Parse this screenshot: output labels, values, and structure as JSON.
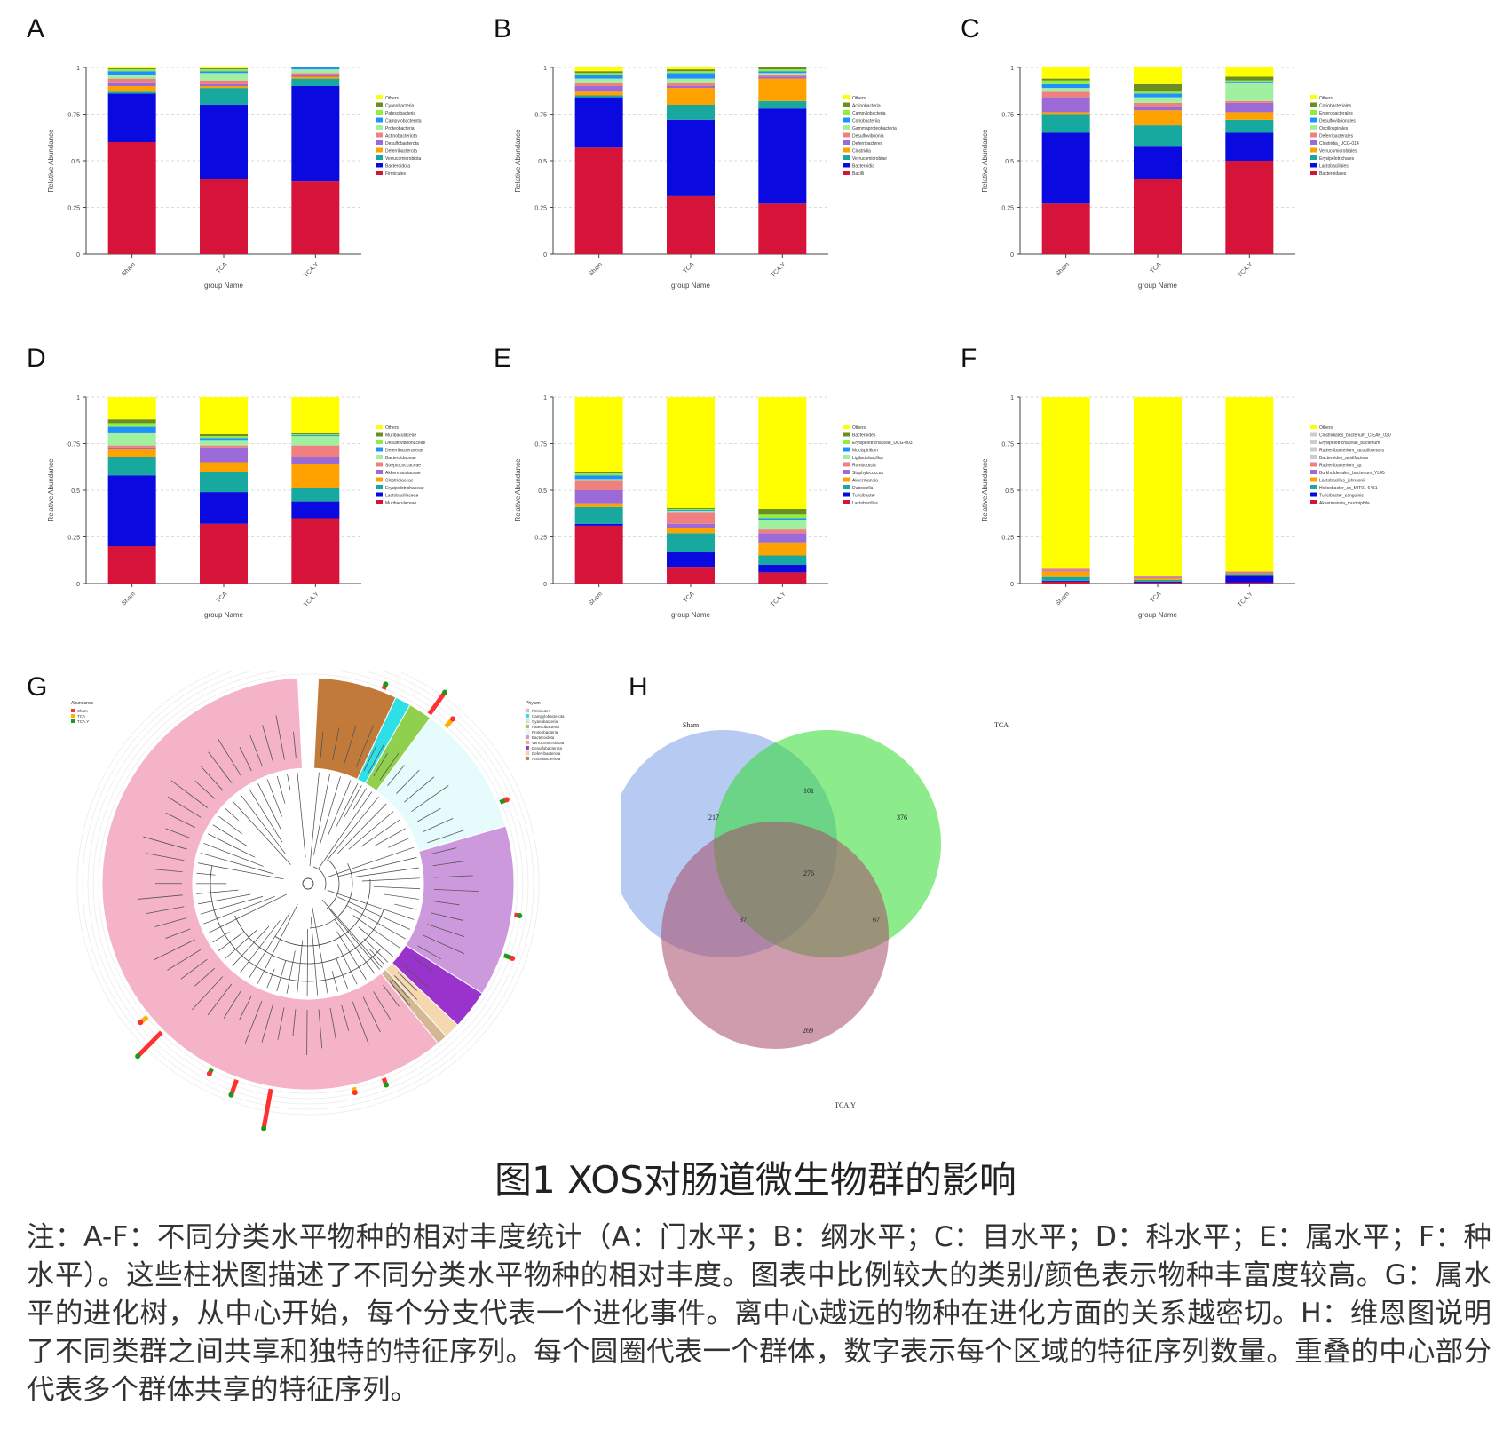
{
  "figure_title": "图1 XOS对肠道微生物群的影响",
  "note_text": "注：A-F：不同分类水平物种的相对丰度统计（A：门水平；B：纲水平；C：目水平；D：科水平；E：属水平；F：种水平）。这些柱状图描述了不同分类水平物种的相对丰度。图表中比例较大的类别/颜色表示物种丰富度较高。G：属水平的进化树，从中心开始，每个分支代表一个进化事件。离中心越远的物种在进化方面的关系越密切。H：维恩图说明了不同类群之间共享和独特的特征序列。每个圆圈代表一个群体，数字表示每个区域的特征序列数量。重叠的中心部分代表多个群体共享的特征序列。",
  "chart_data": [
    {
      "panel": "A",
      "type": "bar",
      "stacked": true,
      "categories": [
        "Sham",
        "TCA",
        "TCA.Y"
      ],
      "xlabel": "group Name",
      "ylabel": "Relative Abundance",
      "ylim": [
        0,
        1
      ],
      "yticks": [
        "0",
        "0.25",
        "0.5",
        "0.75",
        "1"
      ],
      "legend": [
        "Others",
        "Cyanobacteria",
        "Patescibacteria",
        "Campylobacterota",
        "Proteobacteria",
        "Actinobacteriota",
        "Desulfobacterota",
        "Deferribacterota",
        "Verrucomicrobiota",
        "Bacteroidota",
        "Firmicutes"
      ],
      "series": [
        {
          "name": "Firmicutes",
          "color": "#d6143a",
          "values": [
            0.6,
            0.4,
            0.39
          ]
        },
        {
          "name": "Bacteroidota",
          "color": "#0a0ae0",
          "values": [
            0.26,
            0.4,
            0.51
          ]
        },
        {
          "name": "Verrucomicrobiota",
          "color": "#17a8a0",
          "values": [
            0.01,
            0.09,
            0.04
          ]
        },
        {
          "name": "Deferribacterota",
          "color": "#ffa200",
          "values": [
            0.03,
            0.01,
            0.01
          ]
        },
        {
          "name": "Desulfobacterota",
          "color": "#9b6ad6",
          "values": [
            0.02,
            0.01,
            0.01
          ]
        },
        {
          "name": "Actinobacteriota",
          "color": "#f08080",
          "values": [
            0.02,
            0.02,
            0.01
          ]
        },
        {
          "name": "Proteobacteria",
          "color": "#a0f0a0",
          "values": [
            0.02,
            0.04,
            0.02
          ]
        },
        {
          "name": "Campylobacterota",
          "color": "#1e90ff",
          "values": [
            0.02,
            0.01,
            0.01
          ]
        },
        {
          "name": "Patescibacteria",
          "color": "#90ee40",
          "values": [
            0.01,
            0.01,
            0.005
          ]
        },
        {
          "name": "Cyanobacteria",
          "color": "#6b8e23",
          "values": [
            0.005,
            0.005,
            0.005
          ]
        },
        {
          "name": "Others",
          "color": "#ffff00",
          "values": [
            0.005,
            0.005,
            0.01
          ]
        }
      ]
    },
    {
      "panel": "B",
      "type": "bar",
      "stacked": true,
      "categories": [
        "Sham",
        "TCA",
        "TCA.Y"
      ],
      "xlabel": "group Name",
      "ylabel": "Relative Abundance",
      "ylim": [
        0,
        1
      ],
      "yticks": [
        "0",
        "0.25",
        "0.5",
        "0.75",
        "1"
      ],
      "legend": [
        "Others",
        "Actinobacteria",
        "Campylobacteria",
        "Coriobacteriia",
        "Gammaproteobacteria",
        "Desulfovibrionia",
        "Deferribacteres",
        "Clostridia",
        "Verrucomicrobiae",
        "Bacteroidia",
        "Bacilli"
      ],
      "series": [
        {
          "name": "Bacilli",
          "color": "#d6143a",
          "values": [
            0.57,
            0.31,
            0.27
          ]
        },
        {
          "name": "Bacteroidia",
          "color": "#0a0ae0",
          "values": [
            0.27,
            0.41,
            0.51
          ]
        },
        {
          "name": "Verrucomicrobiae",
          "color": "#17a8a0",
          "values": [
            0.01,
            0.08,
            0.04
          ]
        },
        {
          "name": "Clostridia",
          "color": "#ffa200",
          "values": [
            0.02,
            0.09,
            0.12
          ]
        },
        {
          "name": "Deferribacteres",
          "color": "#9b6ad6",
          "values": [
            0.03,
            0.01,
            0.01
          ]
        },
        {
          "name": "Desulfovibrionia",
          "color": "#f08080",
          "values": [
            0.02,
            0.02,
            0.01
          ]
        },
        {
          "name": "Gammaproteobacteria",
          "color": "#a0f0a0",
          "values": [
            0.02,
            0.02,
            0.01
          ]
        },
        {
          "name": "Coriobacteriia",
          "color": "#1e90ff",
          "values": [
            0.02,
            0.03,
            0.01
          ]
        },
        {
          "name": "Campylobacteria",
          "color": "#90ee40",
          "values": [
            0.01,
            0.01,
            0.01
          ]
        },
        {
          "name": "Actinobacteria",
          "color": "#6b8e23",
          "values": [
            0.01,
            0.01,
            0.02
          ]
        },
        {
          "name": "Others",
          "color": "#ffff00",
          "values": [
            0.02,
            0.01,
            0.01
          ]
        }
      ]
    },
    {
      "panel": "C",
      "type": "bar",
      "stacked": true,
      "categories": [
        "Sham",
        "TCA",
        "TCA.Y"
      ],
      "xlabel": "group Name",
      "ylabel": "Relative Abundance",
      "ylim": [
        0,
        1
      ],
      "yticks": [
        "0",
        "0.25",
        "0.5",
        "0.75",
        "1"
      ],
      "legend": [
        "Others",
        "Coriobacteriales",
        "Enterobacterales",
        "Desulfovibrionales",
        "Oscillospirales",
        "Deferribacterales",
        "Clostridia_UCG-014",
        "Verrucomicrobiales",
        "Erysipelotrichales",
        "Lactobacillales",
        "Bacteroidales"
      ],
      "series": [
        {
          "name": "Bacteroidales",
          "color": "#d6143a",
          "values": [
            0.27,
            0.4,
            0.5
          ]
        },
        {
          "name": "Lactobacillales",
          "color": "#0a0ae0",
          "values": [
            0.38,
            0.18,
            0.15
          ]
        },
        {
          "name": "Erysipelotrichales",
          "color": "#17a8a0",
          "values": [
            0.1,
            0.11,
            0.07
          ]
        },
        {
          "name": "Verrucomicrobiales",
          "color": "#ffa200",
          "values": [
            0.01,
            0.08,
            0.04
          ]
        },
        {
          "name": "Clostridia_UCG-014",
          "color": "#9b6ad6",
          "values": [
            0.08,
            0.02,
            0.05
          ]
        },
        {
          "name": "Deferribacterales",
          "color": "#f08080",
          "values": [
            0.03,
            0.02,
            0.01
          ]
        },
        {
          "name": "Oscillospirales",
          "color": "#a0f0a0",
          "values": [
            0.02,
            0.03,
            0.1
          ]
        },
        {
          "name": "Desulfovibrionales",
          "color": "#1e90ff",
          "values": [
            0.02,
            0.02,
            0.005
          ]
        },
        {
          "name": "Enterobacterales",
          "color": "#90ee40",
          "values": [
            0.02,
            0.01,
            0.005
          ]
        },
        {
          "name": "Coriobacteriales",
          "color": "#6b8e23",
          "values": [
            0.01,
            0.04,
            0.02
          ]
        },
        {
          "name": "Others",
          "color": "#ffff00",
          "values": [
            0.06,
            0.09,
            0.06
          ]
        }
      ]
    },
    {
      "panel": "D",
      "type": "bar",
      "stacked": true,
      "categories": [
        "Sham",
        "TCA",
        "TCA.Y"
      ],
      "xlabel": "group Name",
      "ylabel": "Relative Abundance",
      "ylim": [
        0,
        1
      ],
      "yticks": [
        "0",
        "0.25",
        "0.5",
        "0.75",
        "1"
      ],
      "legend": [
        "Others",
        "Muribaculaceae",
        "Desulfovibrionaceae",
        "Deferribacteraceae",
        "Bacteroidaceae",
        "Streptococcaceae",
        "Akkermansiaceae",
        "Clostridiaceae",
        "Erysipelotrichaceae",
        "Lactobacillaceae",
        "Muribaculaceae"
      ],
      "series": [
        {
          "name": "Muribaculaceae",
          "color": "#d6143a",
          "values": [
            0.2,
            0.32,
            0.35
          ]
        },
        {
          "name": "Lactobacillaceae",
          "color": "#0a0ae0",
          "values": [
            0.38,
            0.17,
            0.09
          ]
        },
        {
          "name": "Erysipelotrichaceae",
          "color": "#17a8a0",
          "values": [
            0.1,
            0.11,
            0.07
          ]
        },
        {
          "name": "Clostridiaceae",
          "color": "#ffa200",
          "values": [
            0.04,
            0.05,
            0.13
          ]
        },
        {
          "name": "Akkermansiaceae",
          "color": "#9b6ad6",
          "values": [
            0.01,
            0.08,
            0.04
          ]
        },
        {
          "name": "Streptococcaceae",
          "color": "#f08080",
          "values": [
            0.01,
            0.01,
            0.06
          ]
        },
        {
          "name": "Bacteroidaceae",
          "color": "#a0f0a0",
          "values": [
            0.07,
            0.03,
            0.05
          ]
        },
        {
          "name": "Deferribacteraceae",
          "color": "#1e90ff",
          "values": [
            0.03,
            0.01,
            0.005
          ]
        },
        {
          "name": "Desulfovibrionaceae",
          "color": "#90ee40",
          "values": [
            0.02,
            0.01,
            0.005
          ]
        },
        {
          "name": "Muribaculaceae",
          "color": "#6b8e23",
          "values": [
            0.02,
            0.01,
            0.01
          ]
        },
        {
          "name": "Others",
          "color": "#ffff00",
          "values": [
            0.12,
            0.2,
            0.19
          ]
        }
      ]
    },
    {
      "panel": "E",
      "type": "bar",
      "stacked": true,
      "categories": [
        "Sham",
        "TCA",
        "TCA.Y"
      ],
      "xlabel": "group Name",
      "ylabel": "Relative Abundance",
      "ylim": [
        0,
        1
      ],
      "yticks": [
        "0",
        "0.25",
        "0.5",
        "0.75",
        "1"
      ],
      "legend": [
        "Others",
        "Bacteroides",
        "Erysipelotrichaceae_UCG-003",
        "Mucispirillum",
        "Ligilactobacillus",
        "Romboutsia",
        "Staphylococcus",
        "Akkermansia",
        "Dubosiella",
        "Turicibacter",
        "Lactobacillus"
      ],
      "series": [
        {
          "name": "Lactobacillus",
          "color": "#d6143a",
          "values": [
            0.31,
            0.09,
            0.06
          ]
        },
        {
          "name": "Turicibacter",
          "color": "#0a0ae0",
          "values": [
            0.01,
            0.08,
            0.04
          ]
        },
        {
          "name": "Dubosiella",
          "color": "#17a8a0",
          "values": [
            0.09,
            0.1,
            0.05
          ]
        },
        {
          "name": "Akkermansia",
          "color": "#ffa200",
          "values": [
            0.02,
            0.03,
            0.07
          ]
        },
        {
          "name": "Staphylococcus",
          "color": "#9b6ad6",
          "values": [
            0.07,
            0.02,
            0.05
          ]
        },
        {
          "name": "Romboutsia",
          "color": "#f08080",
          "values": [
            0.05,
            0.06,
            0.02
          ]
        },
        {
          "name": "Ligilactobacillus",
          "color": "#a0f0a0",
          "values": [
            0.01,
            0.01,
            0.05
          ]
        },
        {
          "name": "Mucispirillum",
          "color": "#1e90ff",
          "values": [
            0.02,
            0.005,
            0.01
          ]
        },
        {
          "name": "Erysipelotrichaceae_UCG-003",
          "color": "#90ee40",
          "values": [
            0.01,
            0.005,
            0.02
          ]
        },
        {
          "name": "Bacteroides",
          "color": "#6b8e23",
          "values": [
            0.01,
            0.005,
            0.03
          ]
        },
        {
          "name": "Others",
          "color": "#ffff00",
          "values": [
            0.4,
            0.6,
            0.6
          ]
        }
      ]
    },
    {
      "panel": "F",
      "type": "bar",
      "stacked": true,
      "categories": [
        "Sham",
        "TCA",
        "TCA.Y"
      ],
      "xlabel": "group Name",
      "ylabel": "Relative Abundance",
      "ylim": [
        0,
        1
      ],
      "yticks": [
        "0",
        "0.25",
        "0.5",
        "0.75",
        "1"
      ],
      "legend": [
        "Others",
        "Clostridiales_bacterium_CIEAF_020",
        "Erysipelotrichaceae_bacterium",
        "Ruthenibacterium_lactatiformans",
        "Bacteroides_acidifaciens",
        "Ruthenibacterium_sp.",
        "Burkholderiales_bacterium_YL45",
        "Lactobacillus_johnsonii",
        "Helicobacter_sp_MIT01-6451",
        "Turicibacter_sanguinis",
        "Akkermansia_muciniphila"
      ],
      "series": [
        {
          "name": "Akkermansia_muciniphila",
          "color": "#d6143a",
          "values": [
            0.01,
            0.005,
            0.005
          ]
        },
        {
          "name": "Turicibacter_sanguinis",
          "color": "#0a0ae0",
          "values": [
            0.005,
            0.005,
            0.04
          ]
        },
        {
          "name": "Helicobacter_sp_MIT01-6451",
          "color": "#17a8a0",
          "values": [
            0.02,
            0.01,
            0.005
          ]
        },
        {
          "name": "Lactobacillus_johnsonii",
          "color": "#ffa200",
          "values": [
            0.03,
            0.01,
            0.005
          ]
        },
        {
          "name": "Burkholderiales_bacterium_YL45",
          "color": "#9b6ad6",
          "values": [
            0.005,
            0.005,
            0.005
          ]
        },
        {
          "name": "Ruthenibacterium_sp.",
          "color": "#f08080",
          "values": [
            0.01,
            0.005,
            0.005
          ]
        },
        {
          "name": "Others",
          "color": "#ffff00",
          "values": [
            0.92,
            0.965,
            0.935
          ]
        }
      ]
    },
    {
      "panel": "G",
      "type": "other",
      "description_kind": "circular phylogenetic tree",
      "legend_title_left": "Abundance",
      "legend_left": [
        "Sham",
        "TCA",
        "TCA.Y"
      ],
      "legend_title_right": "Phylum",
      "legend_right": [
        "Firmicutes",
        "Campylobacterota",
        "Cyanobacteria",
        "Patescibacteria",
        "Proteobacteria",
        "Bacteroidota",
        "Verrucomicrobiota",
        "Desulfobacterota",
        "Deferribacterota",
        "Actinobacteriota"
      ],
      "sectors": [
        {
          "name": "Firmicutes",
          "color": "#f5b3c8",
          "share": 0.58
        },
        {
          "name": "Actinobacteriota",
          "color": "#c27a3a",
          "share": 0.06
        },
        {
          "name": "Campylobacterota",
          "color": "#2ee0e6",
          "share": 0.012
        },
        {
          "name": "Patescibacteria",
          "color": "#8fd14f",
          "share": 0.018
        },
        {
          "name": "Proteobacteria",
          "color": "#e6fbfb",
          "share": 0.1
        },
        {
          "name": "Bacteroidota",
          "color": "#cc99dd",
          "share": 0.13
        },
        {
          "name": "Desulfobacterota",
          "color": "#9933cc",
          "share": 0.03
        },
        {
          "name": "Deferribacterota",
          "color": "#f5d7b0",
          "share": 0.012
        },
        {
          "name": "Verrucomicrobiota",
          "color": "#d4b896",
          "share": 0.008
        }
      ],
      "abundance_colors": {
        "Sham": "#ff3030",
        "TCA": "#ffb000",
        "TCA.Y": "#1a9a1a"
      }
    },
    {
      "panel": "H",
      "type": "venn",
      "sets": [
        "Sham",
        "TCA",
        "TCA.Y"
      ],
      "colors": {
        "Sham": "#7a9ee8",
        "TCA": "#2edc2e",
        "TCA.Y": "#a84a6a"
      },
      "regions": {
        "Sham_only": "217",
        "TCA_only": "376",
        "TCAY_only": "269",
        "Sham_TCA": "101",
        "Sham_TCAY": "37",
        "TCA_TCAY": "67",
        "all": "276"
      }
    }
  ]
}
